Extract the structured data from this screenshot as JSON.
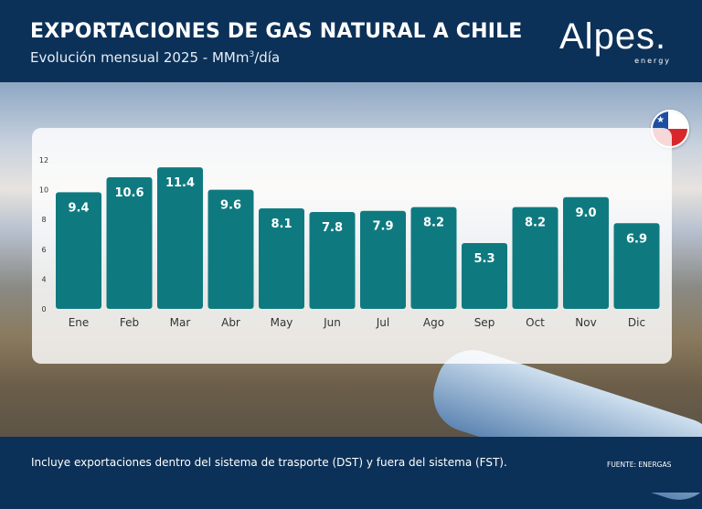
{
  "header": {
    "title": "EXPORTACIONES DE GAS NATURAL A CHILE",
    "subtitle_pre": "Evolución mensual 2025 - MMm",
    "subtitle_sup": "3",
    "subtitle_post": "/día",
    "logo": "Alpes.",
    "logo_sub": "energy"
  },
  "flag_icon": "chile-flag",
  "colors": {
    "bar": "#0e7a80",
    "navy": "#0c3158"
  },
  "chart_data": {
    "type": "bar",
    "title": "EXPORTACIONES DE GAS NATURAL A CHILE",
    "subtitle": "Evolución mensual 2025 - MMm3/día",
    "categories": [
      "Ene",
      "Feb",
      "Mar",
      "Abr",
      "May",
      "Jun",
      "Jul",
      "Ago",
      "Sep",
      "Oct",
      "Nov",
      "Dic"
    ],
    "values": [
      9.4,
      10.6,
      11.4,
      9.6,
      8.1,
      7.8,
      7.9,
      8.2,
      5.3,
      8.2,
      9.0,
      6.9
    ],
    "value_labels": [
      "9.4",
      "10.6",
      "11.4",
      "9.6",
      "8.1",
      "7.8",
      "7.9",
      "8.2",
      "5.3",
      "8.2",
      "9.0",
      "6.9"
    ],
    "yticks": [
      "0",
      "4",
      "6",
      "8",
      "10",
      "12"
    ],
    "ylabel": "MMm³/día",
    "xlabel": "",
    "ylim": [
      0,
      12
    ],
    "grid": false
  },
  "footer": {
    "note": "Incluye exportaciones dentro del sistema de trasporte (DST) y fuera del sistema (FST).",
    "source": "FUENTE: ENERGAS"
  }
}
